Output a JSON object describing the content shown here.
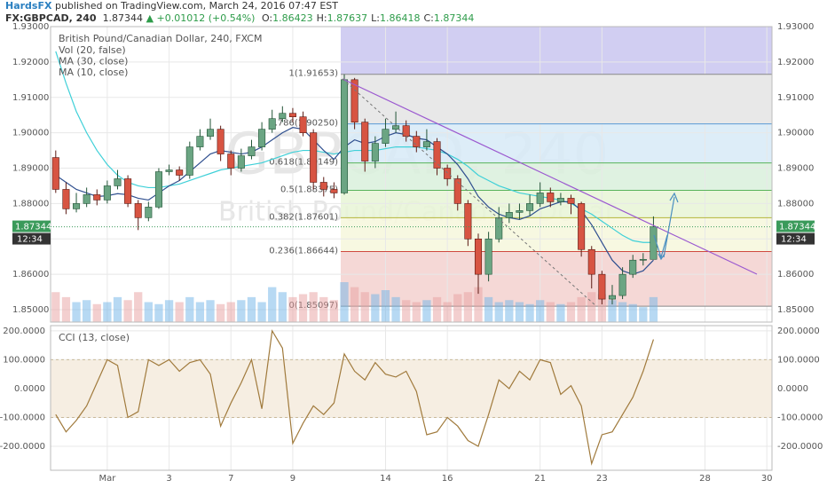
{
  "header": {
    "author": "HardsFX",
    "published": " published on TradingView.com, March 24, 2016 07:47 EST",
    "symbol": "FX:GBPCAD, 240",
    "last": "1.87344",
    "change": "▲ +0.01012 (+0.54%)",
    "ohlc": [
      {
        "key": "O:",
        "value": "1.86423"
      },
      {
        "key": "H:",
        "value": "1.87637"
      },
      {
        "key": "L:",
        "value": "1.86418"
      },
      {
        "key": "C:",
        "value": "1.87344"
      }
    ]
  },
  "chart_data": {
    "type": "candlestick",
    "title": "British Pound/Canadian Dollar, 240, FXCM",
    "watermark": [
      "GBPCAD, 240",
      "British Pound/Canadian Dollar"
    ],
    "categories": [
      null,
      null,
      null,
      null,
      null,
      "Mar",
      null,
      null,
      null,
      null,
      null,
      "3",
      null,
      null,
      null,
      null,
      null,
      "7",
      null,
      null,
      null,
      null,
      null,
      "9",
      null,
      null,
      null,
      null,
      null,
      null,
      null,
      null,
      "14",
      null,
      null,
      null,
      null,
      null,
      "16",
      null,
      null,
      null,
      null,
      null,
      null,
      null,
      null,
      "21",
      null,
      null,
      null,
      null,
      null,
      "23",
      null,
      null,
      null,
      null,
      null,
      null,
      null,
      null,
      null,
      "28",
      null,
      null,
      null,
      null,
      null,
      "30"
    ],
    "open": [
      1.893,
      1.884,
      1.8785,
      1.88,
      1.8825,
      1.881,
      1.885,
      1.887,
      1.88,
      1.876,
      1.879,
      1.889,
      1.8895,
      1.888,
      1.896,
      1.899,
      1.901,
      1.894,
      1.89,
      1.8935,
      1.896,
      1.901,
      1.904,
      1.9055,
      1.9045,
      1.9,
      1.886,
      1.884,
      1.883,
      1.915,
      1.903,
      1.892,
      1.897,
      1.901,
      1.902,
      1.899,
      1.896,
      1.8975,
      1.89,
      1.887,
      1.88,
      1.87,
      1.86,
      1.87,
      1.876,
      1.8775,
      1.878,
      1.88,
      1.883,
      1.8805,
      1.8815,
      1.88,
      1.867,
      1.86,
      1.853,
      1.854,
      1.86,
      1.864,
      1.86423,
      null,
      null,
      null,
      null,
      null,
      null,
      null,
      null,
      null,
      null,
      null
    ],
    "high": [
      1.895,
      1.886,
      1.883,
      1.8845,
      1.884,
      1.8865,
      1.8895,
      1.888,
      1.881,
      1.8805,
      1.89,
      1.891,
      1.8905,
      1.8975,
      1.901,
      1.904,
      1.902,
      1.895,
      1.8955,
      1.898,
      1.903,
      1.9065,
      1.9075,
      1.907,
      1.906,
      1.901,
      1.8875,
      1.886,
      1.9165,
      1.9155,
      1.904,
      1.899,
      1.904,
      1.906,
      1.9035,
      1.9005,
      1.901,
      1.8985,
      1.891,
      1.888,
      1.881,
      1.8715,
      1.872,
      1.879,
      1.88,
      1.88,
      1.8825,
      1.886,
      1.8845,
      1.883,
      1.8825,
      1.8805,
      1.868,
      1.861,
      1.857,
      1.862,
      1.8655,
      1.866,
      1.87637,
      null,
      null,
      null,
      null,
      null,
      null,
      null,
      null,
      null,
      null,
      null
    ],
    "low": [
      1.883,
      1.877,
      1.8775,
      1.879,
      1.8795,
      1.88,
      1.884,
      1.879,
      1.8725,
      1.875,
      1.8785,
      1.888,
      1.8865,
      1.887,
      1.895,
      1.898,
      1.892,
      1.888,
      1.889,
      1.8925,
      1.895,
      1.9,
      1.903,
      1.903,
      1.899,
      1.884,
      1.882,
      1.8815,
      1.8825,
      1.901,
      1.889,
      1.89,
      1.896,
      1.9,
      1.8975,
      1.8945,
      1.895,
      1.888,
      1.885,
      1.878,
      1.868,
      1.8545,
      1.858,
      1.869,
      1.8745,
      1.8755,
      1.8765,
      1.879,
      1.879,
      1.8795,
      1.877,
      1.865,
      1.856,
      1.8515,
      1.8515,
      1.853,
      1.859,
      1.8625,
      1.86418,
      null,
      null,
      null,
      null,
      null,
      null,
      null,
      null,
      null,
      null,
      null
    ],
    "close": [
      1.884,
      1.8785,
      1.88,
      1.8825,
      1.881,
      1.885,
      1.887,
      1.88,
      1.876,
      1.879,
      1.889,
      1.8895,
      1.888,
      1.896,
      1.899,
      1.901,
      1.894,
      1.89,
      1.8935,
      1.896,
      1.901,
      1.904,
      1.9055,
      1.9045,
      1.9,
      1.886,
      1.884,
      1.883,
      1.915,
      1.903,
      1.892,
      1.897,
      1.901,
      1.902,
      1.899,
      1.896,
      1.8975,
      1.89,
      1.887,
      1.88,
      1.87,
      1.86,
      1.87,
      1.876,
      1.8775,
      1.878,
      1.88,
      1.883,
      1.8805,
      1.8815,
      1.88,
      1.867,
      1.86,
      1.853,
      1.854,
      1.86,
      1.864,
      1.86423,
      1.87344,
      null,
      null,
      null,
      null,
      null,
      null,
      null,
      null,
      null,
      null,
      null
    ],
    "up_color": "#6ba583",
    "down_color": "#d75442",
    "volume": {
      "name": "Vol (20, false)",
      "values": [
        30,
        25,
        20,
        22,
        18,
        20,
        25,
        22,
        30,
        20,
        18,
        22,
        20,
        25,
        20,
        22,
        18,
        20,
        22,
        25,
        20,
        35,
        30,
        25,
        28,
        30,
        25,
        22,
        40,
        35,
        30,
        28,
        32,
        25,
        22,
        20,
        22,
        25,
        20,
        28,
        30,
        35,
        25,
        20,
        22,
        20,
        18,
        22,
        20,
        18,
        20,
        25,
        30,
        28,
        22,
        20,
        18,
        15,
        25,
        null,
        null,
        null,
        null,
        null,
        null,
        null,
        null,
        null,
        null,
        null
      ]
    },
    "series": [
      {
        "name": "MA (30, close)",
        "color": "#3fd0d8",
        "values": [
          1.923,
          1.914,
          1.906,
          1.9,
          1.895,
          1.891,
          1.888,
          1.886,
          1.885,
          1.8845,
          1.8845,
          1.885,
          1.8855,
          1.8865,
          1.8875,
          1.8885,
          1.8895,
          1.89,
          1.8905,
          1.891,
          1.8915,
          1.8925,
          1.8935,
          1.8945,
          1.895,
          1.895,
          1.8945,
          1.894,
          1.8945,
          1.895,
          1.895,
          1.895,
          1.8955,
          1.896,
          1.896,
          1.896,
          1.8955,
          1.895,
          1.894,
          1.8925,
          1.8905,
          1.888,
          1.8865,
          1.885,
          1.884,
          1.883,
          1.8825,
          1.882,
          1.8815,
          1.881,
          1.88,
          1.8785,
          1.877,
          1.875,
          1.873,
          1.871,
          1.8695,
          1.869,
          1.869,
          null,
          null,
          null,
          null,
          null,
          null,
          null,
          null,
          null,
          null,
          null
        ]
      },
      {
        "name": "MA (10, close)",
        "color": "#2f4f8f",
        "values": [
          1.888,
          1.886,
          1.884,
          1.883,
          1.882,
          1.8822,
          1.8828,
          1.8825,
          1.8815,
          1.881,
          1.883,
          1.885,
          1.8865,
          1.889,
          1.8915,
          1.894,
          1.895,
          1.8945,
          1.894,
          1.8945,
          1.896,
          1.898,
          1.9,
          1.9015,
          1.901,
          1.898,
          1.895,
          1.8925,
          1.896,
          1.898,
          1.897,
          1.8975,
          1.899,
          1.9,
          1.8995,
          1.8985,
          1.898,
          1.896,
          1.894,
          1.891,
          1.887,
          1.882,
          1.879,
          1.877,
          1.876,
          1.8755,
          1.8765,
          1.8785,
          1.8795,
          1.8805,
          1.8805,
          1.878,
          1.874,
          1.869,
          1.864,
          1.861,
          1.86,
          1.861,
          1.864,
          null,
          null,
          null,
          null,
          null,
          null,
          null,
          null,
          null,
          null,
          null
        ]
      }
    ],
    "fib": {
      "levels": [
        {
          "value": 1.91653,
          "label": "1(1.91653)"
        },
        {
          "value": 1.9025,
          "label": "0.786(1.90250)"
        },
        {
          "value": 1.89149,
          "label": "0.618(1.89149)"
        },
        {
          "value": 1.88375,
          "label": "0.5(1.88375)"
        },
        {
          "value": 1.87601,
          "label": "0.382(1.87601)"
        },
        {
          "value": 1.86644,
          "label": "0.236(1.86644)"
        },
        {
          "value": 1.85097,
          "label": "0(1.85097)"
        }
      ],
      "line_colors": [
        "#888888",
        "#5b9bd5",
        "#59b35a",
        "#59b35a",
        "#b5b53a",
        "#d0493f",
        "#888888"
      ],
      "zone_colors": [
        "#c9c6f0",
        "#e4e4e4",
        "#d7eaf7",
        "#d9f0dc",
        "#e8f5d6",
        "#f6f7dc",
        "#f3d1cf"
      ]
    },
    "price_tag": {
      "value": 1.87344,
      "label": "1.87344"
    },
    "time_tag": "12:34",
    "ylim": [
      1.8465,
      1.93
    ],
    "yticks": [
      {
        "value": 1.85,
        "label": "1.85000"
      },
      {
        "value": 1.86,
        "label": "1.86000"
      },
      {
        "value": 1.87,
        "label": "1.87000"
      },
      {
        "value": 1.88,
        "label": "1.88000"
      },
      {
        "value": 1.89,
        "label": "1.89000"
      },
      {
        "value": 1.9,
        "label": "1.90000"
      },
      {
        "value": 1.91,
        "label": "1.91000"
      },
      {
        "value": 1.92,
        "label": "1.92000"
      },
      {
        "value": 1.93,
        "label": "1.93000"
      }
    ],
    "grid": true,
    "cci": {
      "title": "CCI (13, close)",
      "color": "#a07a3c",
      "band": [
        -100,
        100
      ],
      "band_color": "#f6eee2",
      "values": [
        -90,
        -150,
        -110,
        -60,
        20,
        100,
        80,
        -100,
        -80,
        100,
        80,
        100,
        60,
        90,
        100,
        50,
        -130,
        -50,
        20,
        100,
        -70,
        200,
        140,
        -190,
        -120,
        -60,
        -90,
        -50,
        120,
        60,
        30,
        90,
        50,
        40,
        60,
        -10,
        -160,
        -150,
        -100,
        -130,
        -180,
        -200,
        -90,
        30,
        0,
        60,
        30,
        100,
        90,
        -20,
        10,
        -60,
        -260,
        -160,
        -150,
        -90,
        -30,
        60,
        170,
        null,
        null,
        null,
        null,
        null,
        null,
        null,
        null,
        null,
        null,
        null
      ],
      "ylim": [
        -283,
        218
      ],
      "yticks": [
        {
          "value": 200,
          "label": "200.0000"
        },
        {
          "value": 100,
          "label": "100.0000"
        },
        {
          "value": 0,
          "label": "0.0000"
        },
        {
          "value": -100,
          "label": "-100.0000"
        },
        {
          "value": -200,
          "label": "-200.0000"
        }
      ]
    }
  }
}
